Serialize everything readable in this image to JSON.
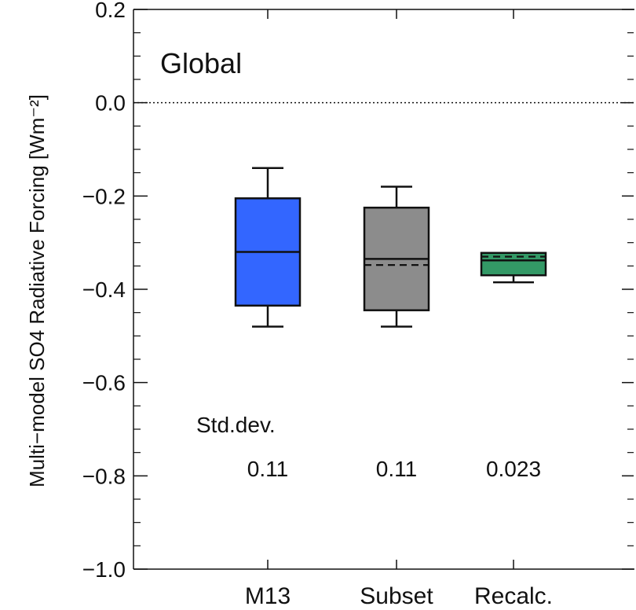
{
  "chart_data": {
    "type": "box",
    "title": "Global",
    "ylabel": "Multi−model SO4 Radiative Forcing [Wm⁻²]",
    "ylim": [
      -1.0,
      0.2
    ],
    "yticks": [
      {
        "value": 0.2,
        "label": "0.2"
      },
      {
        "value": 0.0,
        "label": "0.0"
      },
      {
        "value": -0.2,
        "label": "−0.2"
      },
      {
        "value": -0.4,
        "label": "−0.4"
      },
      {
        "value": -0.6,
        "label": "−0.6"
      },
      {
        "value": -0.8,
        "label": "−0.8"
      },
      {
        "value": -1.0,
        "label": "−1.0"
      }
    ],
    "categories": [
      "M13",
      "Subset",
      "Recalc."
    ],
    "boxes": [
      {
        "category": "M13",
        "whisker_low": -0.48,
        "q1": -0.435,
        "median": -0.32,
        "q3": -0.205,
        "whisker_high": -0.14,
        "color": "#3366ff"
      },
      {
        "category": "Subset",
        "whisker_low": -0.48,
        "q1": -0.445,
        "median": -0.335,
        "mean": -0.348,
        "q3": -0.225,
        "whisker_high": -0.18,
        "color": "#8c8c8c"
      },
      {
        "category": "Recalc.",
        "whisker_low": -0.385,
        "q1": -0.37,
        "median": -0.338,
        "mean": -0.33,
        "q3": -0.322,
        "whisker_high": -0.322,
        "color": "#339966"
      }
    ],
    "reference_line": {
      "value": 0.0,
      "style": "dotted"
    },
    "annotation_label": "Std.dev.",
    "std_devs": [
      "0.11",
      "0.11",
      "0.023"
    ]
  }
}
